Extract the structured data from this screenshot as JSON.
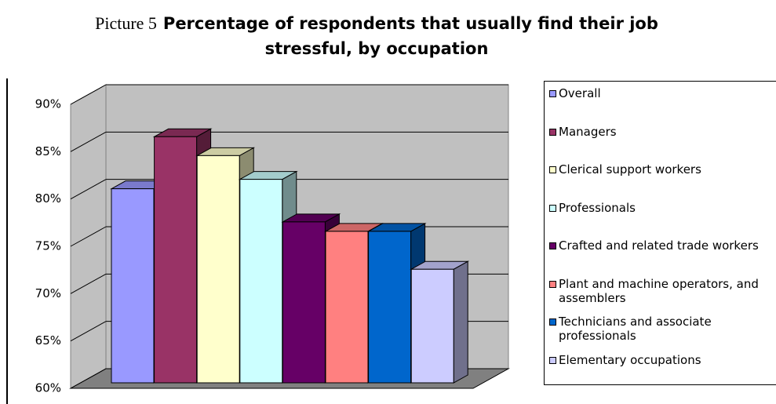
{
  "chart_data": {
    "type": "bar3d",
    "figure_label": "Picture 5",
    "title": "Percentage of respondents that usually find their job stressful, by occupation",
    "series": [
      {
        "name": "Overall",
        "color": "#9999ff",
        "values": [
          80.5
        ]
      },
      {
        "name": "Managers",
        "color": "#993366",
        "values": [
          86
        ]
      },
      {
        "name": "Clerical support workers",
        "color": "#ffffcc",
        "values": [
          84
        ]
      },
      {
        "name": "Professionals",
        "color": "#ccffff",
        "values": [
          81.5
        ]
      },
      {
        "name": "Crafted and related trade workers",
        "color": "#660066",
        "values": [
          77
        ]
      },
      {
        "name": "Plant and machine operators, and assemblers",
        "color": "#ff8080",
        "values": [
          76
        ]
      },
      {
        "name": "Technicians and associate professionals",
        "color": "#0066cc",
        "values": [
          76
        ]
      },
      {
        "name": "Elementary occupations",
        "color": "#ccccff",
        "values": [
          72
        ]
      }
    ],
    "ylim": [
      60,
      90
    ],
    "yticks": [
      {
        "value": 60,
        "label": "60%"
      },
      {
        "value": 65,
        "label": "65%"
      },
      {
        "value": 70,
        "label": "70%"
      },
      {
        "value": 75,
        "label": "75%"
      },
      {
        "value": 80,
        "label": "80%"
      },
      {
        "value": 85,
        "label": "85%"
      },
      {
        "value": 90,
        "label": "90%"
      }
    ],
    "grid": true,
    "legend": "right"
  }
}
